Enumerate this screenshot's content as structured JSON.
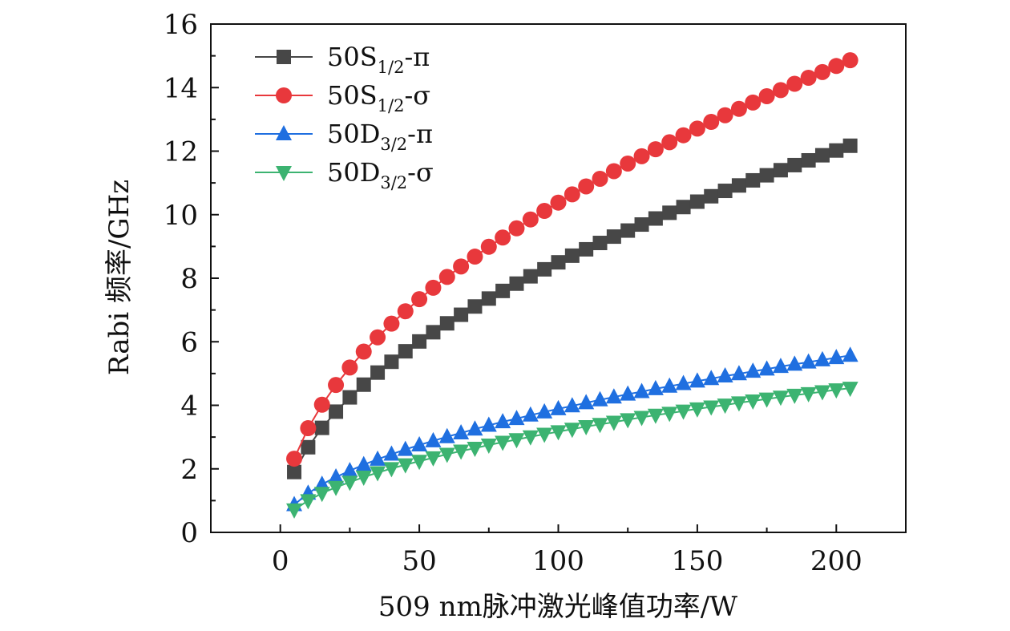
{
  "chart_data": {
    "type": "line",
    "title": "",
    "xlabel": "509 nm脉冲激光峰值功率/W",
    "ylabel": "Rabi 频率/GHz",
    "xlim": [
      -25,
      225
    ],
    "ylim": [
      0,
      16
    ],
    "xticks": [
      0,
      50,
      100,
      150,
      200
    ],
    "yticks": [
      0,
      2,
      4,
      6,
      8,
      10,
      12,
      14,
      16
    ],
    "xtick_labels": [
      "0",
      "50",
      "100",
      "150",
      "200"
    ],
    "ytick_labels": [
      "0",
      "2",
      "4",
      "6",
      "8",
      "10",
      "12",
      "14",
      "16"
    ],
    "grid": false,
    "legend_position": "top-left",
    "x": [
      5,
      10,
      15,
      20,
      25,
      30,
      35,
      40,
      45,
      50,
      55,
      60,
      65,
      70,
      75,
      80,
      85,
      90,
      95,
      100,
      105,
      110,
      115,
      120,
      125,
      130,
      135,
      140,
      145,
      150,
      155,
      160,
      165,
      170,
      175,
      180,
      185,
      190,
      195,
      200,
      205
    ],
    "series": [
      {
        "name": "50S1/2-π",
        "legend": {
          "base": "50S",
          "sub": "1/2",
          "suffix": "-π"
        },
        "color": "#474747",
        "marker": "square",
        "values": [
          1.9,
          2.68,
          3.29,
          3.8,
          4.25,
          4.65,
          5.03,
          5.37,
          5.7,
          6.01,
          6.3,
          6.58,
          6.85,
          7.11,
          7.36,
          7.6,
          7.83,
          8.06,
          8.28,
          8.5,
          8.71,
          8.91,
          9.11,
          9.31,
          9.5,
          9.69,
          9.88,
          10.06,
          10.24,
          10.41,
          10.58,
          10.75,
          10.92,
          11.08,
          11.24,
          11.4,
          11.56,
          11.71,
          11.87,
          12.02,
          12.17
        ]
      },
      {
        "name": "50S1/2-σ",
        "legend": {
          "base": "50S",
          "sub": "1/2",
          "suffix": "-σ"
        },
        "color": "#e8383c",
        "marker": "circle",
        "values": [
          2.32,
          3.28,
          4.02,
          4.64,
          5.19,
          5.69,
          6.14,
          6.57,
          6.96,
          7.34,
          7.7,
          8.04,
          8.37,
          8.68,
          8.99,
          9.28,
          9.57,
          9.85,
          10.12,
          10.38,
          10.64,
          10.89,
          11.13,
          11.37,
          11.61,
          11.84,
          12.06,
          12.28,
          12.5,
          12.71,
          12.92,
          13.13,
          13.33,
          13.53,
          13.73,
          13.92,
          14.12,
          14.31,
          14.49,
          14.68,
          14.86
        ]
      },
      {
        "name": "50D3/2-π",
        "legend": {
          "base": "50D",
          "sub": "3/2",
          "suffix": "-π"
        },
        "color": "#1f6fe0",
        "marker": "triangle-up",
        "values": [
          0.87,
          1.23,
          1.51,
          1.74,
          1.94,
          2.13,
          2.3,
          2.46,
          2.61,
          2.75,
          2.88,
          3.01,
          3.13,
          3.25,
          3.37,
          3.48,
          3.58,
          3.69,
          3.79,
          3.89,
          3.98,
          4.08,
          4.17,
          4.26,
          4.35,
          4.43,
          4.52,
          4.6,
          4.68,
          4.76,
          4.84,
          4.92,
          4.99,
          5.07,
          5.14,
          5.22,
          5.29,
          5.36,
          5.43,
          5.5,
          5.57
        ]
      },
      {
        "name": "50D3/2-σ",
        "legend": {
          "base": "50D",
          "sub": "3/2",
          "suffix": "-σ"
        },
        "color": "#3cb371",
        "marker": "triangle-down",
        "values": [
          0.71,
          1.0,
          1.23,
          1.42,
          1.58,
          1.74,
          1.88,
          2.01,
          2.13,
          2.24,
          2.35,
          2.46,
          2.56,
          2.65,
          2.75,
          2.84,
          2.92,
          3.01,
          3.09,
          3.17,
          3.25,
          3.33,
          3.4,
          3.47,
          3.55,
          3.62,
          3.69,
          3.75,
          3.82,
          3.89,
          3.95,
          4.01,
          4.08,
          4.14,
          4.2,
          4.26,
          4.32,
          4.37,
          4.43,
          4.49,
          4.54
        ]
      }
    ]
  }
}
